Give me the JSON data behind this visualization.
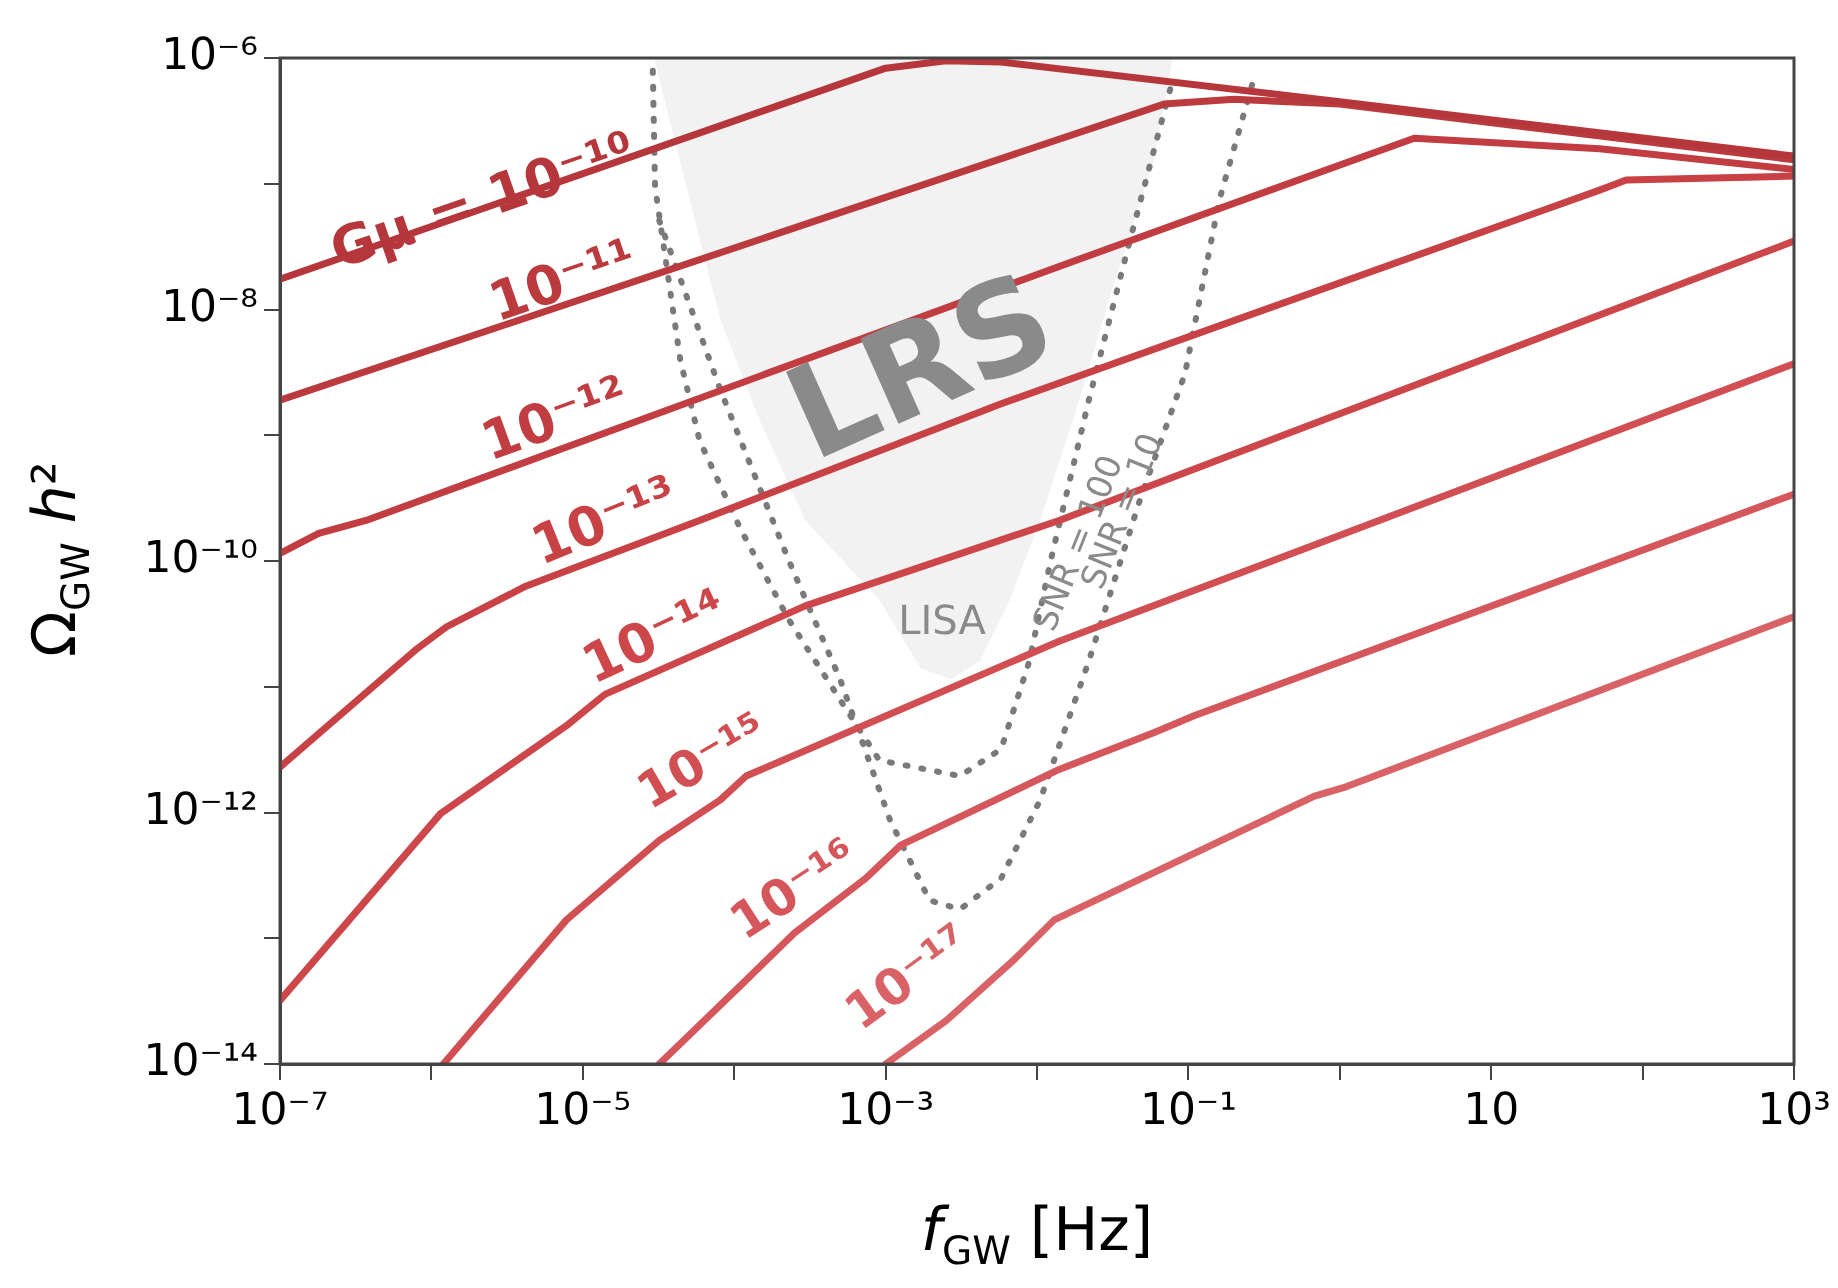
{
  "chart_data": {
    "type": "line",
    "xlabel": "f$_{GW}$ [Hz]",
    "ylabel": "Ω$_{GW}$ h²",
    "log": "xy",
    "grid": false,
    "legend": false,
    "marker": "none",
    "xlim": [
      1e-07,
      1000
    ],
    "ylim": [
      1e-14,
      1e-06
    ],
    "xticks": [
      {
        "value": 1e-07,
        "label": "10⁻⁷"
      },
      {
        "value": 1e-06,
        "label": null
      },
      {
        "value": 1e-05,
        "label": "10⁻⁵"
      },
      {
        "value": 0.0001,
        "label": null
      },
      {
        "value": 0.001,
        "label": "10⁻³"
      },
      {
        "value": 0.01,
        "label": null
      },
      {
        "value": 0.1,
        "label": "10⁻¹"
      },
      {
        "value": 1,
        "label": null
      },
      10,
      {
        "value": 100,
        "label": null
      },
      {
        "value": 1000,
        "label": "10³"
      }
    ],
    "yticks": [
      {
        "value": 1e-14,
        "label": "10⁻¹⁴"
      },
      {
        "value": 1e-13,
        "label": null
      },
      {
        "value": 1e-12,
        "label": "10⁻¹²"
      },
      {
        "value": 1e-11,
        "label": null
      },
      {
        "value": 1e-10,
        "label": "10⁻¹⁰"
      },
      {
        "value": 1e-09,
        "label": null
      },
      {
        "value": 1e-08,
        "label": "10⁻⁸"
      },
      {
        "value": 1e-07,
        "label": null
      },
      {
        "value": 1e-06,
        "label": "10⁻⁶"
      }
    ],
    "annotations": [
      "LISA"
    ],
    "series": [
      {
        "name": "Gμ = 10⁻¹⁰",
        "type": "line",
        "color": "#b5373b",
        "x": [
          1e-07,
          0.001,
          0.0025,
          0.0058,
          1,
          1000
        ],
        "values": [
          1.74e-08,
          8.3e-07,
          9.5e-07,
          9.3e-07,
          4.5e-07,
          1.66e-07
        ]
      },
      {
        "name": "10⁻¹¹",
        "type": "line",
        "color": "#bb3a3e",
        "x": [
          1e-07,
          0.069,
          0.2,
          1,
          1000
        ],
        "values": [
          1.9e-09,
          4.3e-07,
          4.7e-07,
          4.3e-07,
          1.55e-07
        ]
      },
      {
        "name": "10⁻¹²",
        "type": "line",
        "color": "#c13d41",
        "x": [
          1e-07,
          1.8e-07,
          3.7e-07,
          0.014,
          3.1,
          52,
          1000
        ],
        "values": [
          1.15e-10,
          1.66e-10,
          2.1e-10,
          2.2e-08,
          2.3e-07,
          1.9e-07,
          1.3e-07
        ]
      },
      {
        "name": "10⁻¹³",
        "type": "line",
        "color": "#c74145",
        "x": [
          1e-07,
          7.8e-07,
          1.26e-06,
          4.2e-06,
          5.9e-05,
          0.0058,
          52,
          78,
          1000
        ],
        "values": [
          2.3e-12,
          1.95e-11,
          3e-11,
          6.3e-11,
          2.1e-10,
          1.78e-09,
          8.9e-08,
          1.07e-07,
          1.15e-07
        ]
      },
      {
        "name": "10⁻¹⁴",
        "type": "line",
        "color": "#cc464a",
        "x": [
          1e-07,
          1.15e-06,
          7.8e-06,
          1.4e-05,
          0.000295,
          0.014,
          1000
        ],
        "values": [
          3.2e-14,
          9.8e-13,
          4.9e-12,
          8.7e-12,
          4.4e-11,
          2.1e-10,
          3.5e-08
        ]
      },
      {
        "name": "10⁻¹⁵",
        "type": "line",
        "color": "#d14e52",
        "x": [
          1.2e-06,
          7.8e-06,
          3.2e-05,
          8.1e-05,
          0.00012,
          0.014,
          1000
        ],
        "values": [
          1e-14,
          1.4e-13,
          6e-13,
          1.26e-12,
          1.95e-12,
          2.3e-11,
          3.7e-09
        ]
      },
      {
        "name": "10⁻¹⁶",
        "type": "line",
        "color": "#d5575b",
        "x": [
          3.2e-05,
          0.00011,
          0.00025,
          0.00074,
          0.00126,
          0.014,
          0.059,
          0.11,
          1000
        ],
        "values": [
          1e-14,
          4.2e-14,
          1.1e-13,
          3e-13,
          5.5e-13,
          2.2e-12,
          4.3e-12,
          5.9e-12,
          3.4e-10
        ]
      },
      {
        "name": "10⁻¹⁷",
        "type": "line",
        "color": "#d96266",
        "x": [
          0.001,
          0.0025,
          0.0071,
          0.013,
          0.68,
          1.1,
          1000
        ],
        "values": [
          1e-14,
          2.2e-14,
          6.8e-14,
          1.4e-13,
          1.35e-12,
          1.6e-12,
          3.6e-11
        ]
      },
      {
        "name": "LRS",
        "type": "area",
        "color": "#f2f2f2",
        "x": [
          2.95e-05,
          5.1e-05,
          8.1e-05,
          0.000148,
          0.000295,
          0.00091,
          0.0017,
          0.0027,
          0.0042,
          0.0066,
          0.0105,
          0.019,
          0.03,
          0.059,
          0.079
        ],
        "values": [
          1e-06,
          7.4e-08,
          8.3e-09,
          1.3e-09,
          2.1e-10,
          4.9e-11,
          1.4e-11,
          1.15e-11,
          1.6e-11,
          4.9e-11,
          2.1e-10,
          1.9e-09,
          1.2e-08,
          1.55e-07,
          1e-06
        ]
      },
      {
        "name": "SNR = 100",
        "type": "line",
        "line_style": "dotted",
        "color": "#7a7a7a",
        "x": [
          2.9e-05,
          3e-05,
          4.4e-05,
          5.9e-05,
          0.00011,
          0.00023,
          0.0005,
          0.00091,
          0.0031,
          0.0058,
          0.0089,
          0.0123,
          0.022,
          0.041,
          0.079
        ],
        "values": [
          7.9e-07,
          9.5e-08,
          4e-09,
          9.1e-10,
          1.8e-10,
          3.4e-11,
          7.9e-12,
          2.6e-12,
          1.95e-12,
          3.2e-12,
          1.6e-11,
          1e-10,
          1.9e-09,
          3.5e-08,
          6.8e-07
        ]
      },
      {
        "name": "SNR = 10",
        "type": "line",
        "line_style": "dotted",
        "color": "#7a7a7a",
        "x": [
          3.2e-05,
          8.1e-05,
          0.00023,
          0.0005,
          0.00107,
          0.00195,
          0.0031,
          0.0058,
          0.0105,
          0.022,
          0.048,
          0.095,
          0.16,
          0.27
        ],
        "values": [
          5.1e-08,
          2.3e-09,
          1e-10,
          1.15e-11,
          8.7e-13,
          2e-13,
          1.7e-13,
          3e-13,
          1.26e-12,
          1.6e-11,
          3.1e-10,
          3.1e-09,
          7.4e-08,
          6.8e-07
        ]
      }
    ]
  }
}
